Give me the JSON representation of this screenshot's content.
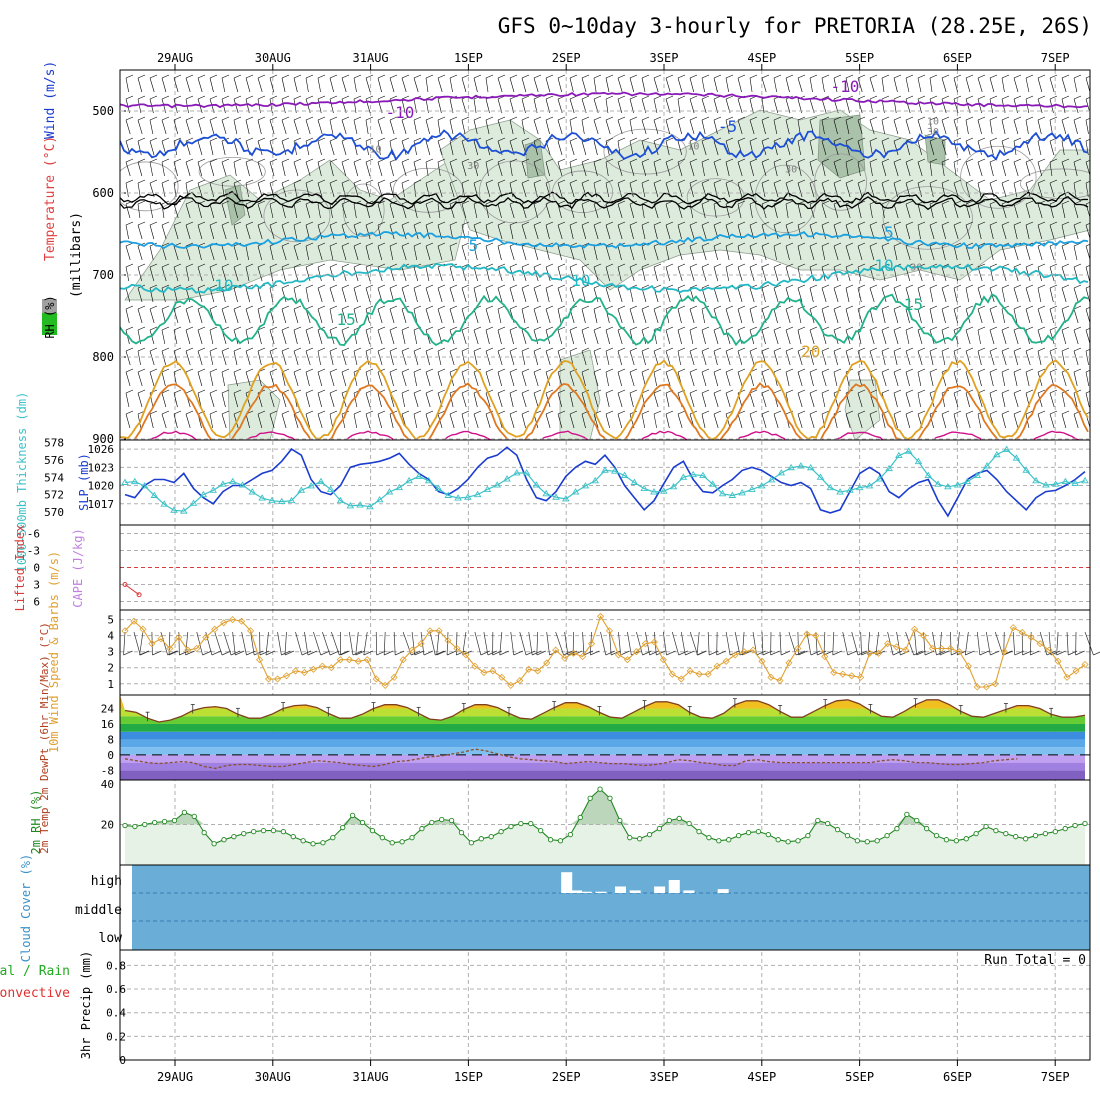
{
  "chart_title": "GFS 0~10day 3-hourly for PRETORIA (28.25E, 26S)",
  "chart_data": [
    {
      "type": "contour",
      "panel": "upper-air",
      "ylabel_parts": [
        "RH (%)",
        "Temperature (°C)",
        "Wind (m/s)",
        "(millibars)"
      ],
      "y_ticks": [
        "500",
        "600",
        "700",
        "800",
        "900"
      ],
      "ylim": [
        900,
        450
      ],
      "x_tick_labels": [
        "29AUG",
        "30AUG",
        "31AUG",
        "1SEP",
        "2SEP",
        "3SEP",
        "4SEP",
        "5SEP",
        "6SEP",
        "7SEP"
      ],
      "contour_labels": [
        {
          "text": "-10",
          "series": "temp-10",
          "day": 6.85
        },
        {
          "text": "-10",
          "series": "temp-10",
          "day": 2.3
        },
        {
          "text": "-5",
          "series": "temp-5",
          "day": 5.65
        },
        {
          "text": "5",
          "series": "temp5",
          "day": 3.05
        },
        {
          "text": "5",
          "series": "temp5",
          "day": 7.3
        },
        {
          "text": "10",
          "series": "temp10",
          "day": 0.5
        },
        {
          "text": "10",
          "series": "temp10",
          "day": 4.15
        },
        {
          "text": "10",
          "series": "temp10",
          "day": 7.25
        },
        {
          "text": "15",
          "series": "temp15",
          "day": 1.75
        },
        {
          "text": "15",
          "series": "temp15",
          "day": 7.55
        },
        {
          "text": "20",
          "series": "temp20",
          "day": 6.5
        }
      ],
      "rh_labels": [
        {
          "text": "10",
          "day": 5.3,
          "p": 548
        },
        {
          "text": "10",
          "day": 7.75,
          "p": 518
        },
        {
          "text": "30",
          "day": 7.75,
          "p": 531
        },
        {
          "text": "10",
          "day": 2.05,
          "p": 552
        },
        {
          "text": "30",
          "day": 3.05,
          "p": 572
        },
        {
          "text": "30",
          "day": 6.3,
          "p": 576
        },
        {
          "text": "30",
          "day": 7.58,
          "p": 695
        },
        {
          "text": "30",
          "day": 9.95,
          "p": 542
        }
      ]
    },
    {
      "type": "line",
      "panel": "thickness-slp",
      "ylabel_left": "1000-500mb Thickness (dm)",
      "ylabel_right": "SLP (mb)",
      "y_ticks_thickness": [
        "578",
        "576",
        "574",
        "572",
        "570"
      ],
      "y_ticks_slp": [
        "1026",
        "1023",
        "1020",
        "1017"
      ],
      "series": [
        {
          "key": "slp",
          "values": [
            1018.5,
            1018,
            1020,
            1021,
            1021,
            1020.5,
            1022,
            1019.5,
            1018,
            1017,
            1019,
            1020,
            1020,
            1021,
            1022,
            1022.5,
            1024,
            1026,
            1025,
            1021,
            1019,
            1018.5,
            1020,
            1023,
            1023.5,
            1023.7,
            1024,
            1024.5,
            1025.3,
            1023.5,
            1022,
            1021,
            1019,
            1018.5,
            1019.5,
            1021,
            1023,
            1024.5,
            1025,
            1026.3,
            1025,
            1021,
            1018,
            1017.5,
            1019,
            1021.5,
            1023,
            1024,
            1023.5,
            1025,
            1023,
            1020,
            1018,
            1016,
            1017.5,
            1020.3,
            1023,
            1024,
            1021,
            1019,
            1018.8,
            1020,
            1021,
            1022.5,
            1023,
            1022.5,
            1021.5,
            1020.5,
            1020,
            1020.5,
            1019.5,
            1016,
            1015.5,
            1016,
            1019,
            1022,
            1023,
            1022,
            1019,
            1018,
            1019.5,
            1020.5,
            1021,
            1017.5,
            1015,
            1018,
            1021,
            1022,
            1022.5,
            1021,
            1019,
            1017.5,
            1016,
            1018,
            1019,
            1019.2,
            1020,
            1021,
            1022.3
          ]
        },
        {
          "key": "thickness",
          "values": [
            573.4,
            573.5,
            573,
            571.9,
            570.9,
            570.2,
            570.1,
            571,
            572,
            572.5,
            573.2,
            573.5,
            573.1,
            572.3,
            571.6,
            571.3,
            571.2,
            571.3,
            572.5,
            573,
            573.5,
            572.6,
            571.3,
            570.7,
            570.8,
            570.6,
            571.4,
            572.3,
            572.8,
            573.6,
            574.1,
            573.6,
            572.7,
            571.9,
            571.6,
            571.7,
            572,
            572.6,
            573.1,
            573.8,
            574.5,
            574.5,
            573.1,
            572.1,
            571.7,
            571.5,
            572.3,
            573,
            573.6,
            574.8,
            574.7,
            574.2,
            573.4,
            572.7,
            572.3,
            572.4,
            572.9,
            574,
            574.3,
            574.2,
            573.2,
            572.1,
            571.9,
            572.2,
            572.6,
            573,
            573.7,
            574.5,
            575.1,
            575.3,
            575.1,
            574,
            572.8,
            572.3,
            572.5,
            572.8,
            573,
            573.8,
            575,
            576.5,
            577,
            575.8,
            574.2,
            573.2,
            572.9,
            573.1,
            573.5,
            574.2,
            575.3,
            576.6,
            577.2,
            576.2,
            574.8,
            573.6,
            573.1,
            573.2,
            573.5,
            573.3,
            573.6
          ]
        }
      ]
    },
    {
      "type": "line",
      "panel": "cape-li",
      "ylabel_left": "Lifted Index",
      "ylabel_right": "CAPE (J/kg)",
      "y_ticks": [
        "-6",
        "-3",
        "0",
        "3",
        "6"
      ],
      "series": [
        {
          "key": "lifted-index",
          "x_days": [
            0,
            0.18
          ],
          "values": [
            3,
            4.8
          ]
        }
      ]
    },
    {
      "type": "line",
      "panel": "wind10m",
      "ylabel": "10m Wind Speed & Barbs (m/s)",
      "y_ticks": [
        "1",
        "2",
        "3",
        "4",
        "5"
      ],
      "series": [
        {
          "key": "wind-speed",
          "values": [
            4.3,
            4.9,
            4.4,
            3.5,
            3.8,
            3.2,
            3.9,
            3.1,
            3.2,
            3.9,
            4.4,
            4.8,
            5,
            4.9,
            4.3,
            2.5,
            1.3,
            1.3,
            1.5,
            1.8,
            1.7,
            1.9,
            2.1,
            2,
            2.5,
            2.5,
            2.4,
            2.5,
            1.3,
            0.9,
            1.4,
            2.5,
            3.1,
            3.5,
            4.3,
            4.3,
            3.7,
            3.2,
            2.8,
            2.1,
            1.7,
            1.8,
            1.4,
            0.9,
            1.2,
            1.9,
            1.8,
            2.3,
            3.1,
            2.6,
            2.9,
            2.7,
            3.5,
            5.2,
            4.3,
            2.8,
            2.5,
            3,
            3.5,
            3.6,
            2.5,
            1.6,
            1.3,
            1.8,
            1.6,
            1.6,
            2.1,
            2.4,
            2.8,
            3,
            3.1,
            2.4,
            1.4,
            1.2,
            2.3,
            3.2,
            4.1,
            4,
            2.7,
            1.7,
            1.6,
            1.5,
            1.4,
            2.9,
            2.9,
            3.5,
            3.3,
            3.1,
            4.4,
            4,
            3.2,
            3.2,
            3.2,
            3,
            2.1,
            0.8,
            0.8,
            1,
            3,
            4.5,
            4.2,
            3.9,
            3.5,
            3.1,
            2.4,
            1.4,
            1.8,
            2.2
          ]
        }
      ]
    },
    {
      "type": "line",
      "panel": "temperature",
      "ylabel": "2m Temp 2m DewPt (6hr Min/Max) (°C)",
      "y_ticks": [
        "24",
        "16",
        "8",
        "0",
        "-8"
      ],
      "series": [
        {
          "key": "temp",
          "values": [
            23,
            22,
            19,
            17,
            18,
            20,
            23,
            24.5,
            25,
            24,
            21,
            19,
            19,
            21,
            24,
            25.5,
            25.8,
            24.5,
            21.5,
            19,
            19,
            21,
            24,
            26,
            26,
            24.5,
            21.5,
            18.5,
            18,
            20,
            23.5,
            26,
            26,
            24.5,
            21.5,
            19,
            18.5,
            21.5,
            24.5,
            27,
            27,
            25,
            22,
            19.5,
            19,
            22,
            25,
            27.5,
            27.5,
            26,
            22,
            19.5,
            19,
            21.5,
            26,
            28,
            28,
            26,
            22.5,
            19.5,
            19.5,
            22.5,
            25.5,
            28,
            28.5,
            26.5,
            23,
            20,
            19.5,
            22.5,
            26,
            28.5,
            28.5,
            26,
            22.5,
            20,
            19.5,
            21.5,
            23.5,
            25.5,
            25.5,
            24,
            21,
            19.5,
            19.5,
            20.5
          ]
        },
        {
          "key": "dewpoint",
          "values": [
            -2,
            -3,
            -4,
            -4.5,
            -4,
            -3.5,
            -4,
            -6,
            -7,
            -5.5,
            -5,
            -5,
            -5.5,
            -6,
            -6,
            -5,
            -4,
            -3,
            -3.5,
            -4,
            -5,
            -5.5,
            -6,
            -5,
            -3.5,
            -3,
            -2,
            -1,
            -0.5,
            0.5,
            1.5,
            3,
            2,
            0.5,
            -1,
            -2,
            -2.5,
            -3,
            -3.5,
            -4.5,
            -4,
            -3.5,
            -4,
            -4.5,
            -4.5,
            -5,
            -5.5,
            -5,
            -4,
            -2.5,
            -3,
            -4,
            -4.5,
            -5.5,
            -5.5,
            -3,
            -2.5,
            -3.5,
            -4,
            -4,
            -4,
            -4,
            -4,
            -4,
            -4,
            -4,
            -4,
            -3,
            -2.5,
            -3,
            -4,
            -4,
            -4.5,
            -5,
            -5,
            -4.5,
            -4,
            -3,
            -2.5,
            -2
          ]
        }
      ]
    },
    {
      "type": "area",
      "panel": "rh2m",
      "ylabel": "2m RH (%)",
      "y_ticks": [
        "20",
        "40"
      ],
      "series": [
        {
          "key": "rh",
          "values": [
            19.5,
            19,
            20,
            21,
            21.5,
            22,
            26,
            24,
            16,
            10.5,
            12.5,
            14,
            15.5,
            16.5,
            17,
            17,
            16.5,
            14,
            12,
            10.5,
            11,
            13.5,
            18.5,
            24.5,
            21,
            17,
            13.5,
            11,
            11.5,
            13.5,
            18,
            21,
            22.5,
            22,
            16,
            11,
            13,
            14,
            16.5,
            19,
            20.5,
            20.5,
            17,
            12.5,
            12,
            15,
            23.5,
            33,
            37.5,
            33,
            22,
            13.5,
            13,
            15,
            18,
            22,
            23,
            20.5,
            16.5,
            13.5,
            12,
            12.5,
            14.5,
            16,
            16.5,
            15,
            12.5,
            11.5,
            12,
            14.5,
            22,
            20.5,
            17.5,
            14.5,
            12,
            11.5,
            12,
            14.5,
            18,
            25,
            22,
            18,
            14.5,
            12.5,
            12,
            13,
            15.5,
            19,
            17,
            15.5,
            14,
            13,
            14.5,
            15.5,
            16.5,
            18,
            19.5,
            20.5
          ]
        }
      ]
    },
    {
      "type": "bar",
      "panel": "cloud",
      "ylabel": "Cloud Cover (%)",
      "y_ticks": [
        "high",
        "middle",
        "low"
      ],
      "high_cloud_bars": [
        {
          "day": 4.0,
          "value": 0.8
        },
        {
          "day": 4.1,
          "value": 0.1
        },
        {
          "day": 4.2,
          "value": 0.05
        },
        {
          "day": 4.35,
          "value": 0.05
        },
        {
          "day": 4.55,
          "value": 0.25
        },
        {
          "day": 4.7,
          "value": 0.1
        },
        {
          "day": 4.95,
          "value": 0.25
        },
        {
          "day": 5.1,
          "value": 0.5
        },
        {
          "day": 5.25,
          "value": 0.1
        },
        {
          "day": 5.6,
          "value": 0.15
        }
      ]
    },
    {
      "type": "bar",
      "panel": "precip",
      "ylabel_parts": [
        "Total / Rain",
        "Convective",
        "3hr Precip (mm)"
      ],
      "y_ticks": [
        "0",
        "0.2",
        "0.4",
        "0.6",
        "0.8"
      ],
      "run_total": "Run Total = 0",
      "values": [
        0
      ]
    }
  ],
  "colors": {
    "axis": "#000000",
    "grid": "#b0b0b0",
    "temp_-10": "#8a1ab8",
    "temp_-5": "#1c4fd6",
    "temp_0": "#000000",
    "temp_5": "#1ba0e0",
    "temp_10": "#22b8c4",
    "temp_15": "#22b28a",
    "temp_20": "#e0a020",
    "temp_25": "#e07820",
    "temp_30": "#d0108a",
    "rh_fill": "#dcebdc",
    "rh_dark": "#a9c2a9",
    "slp": "#1a3ccf",
    "thickness": "#3cc2c8",
    "li": "#d93a3a",
    "cape": "#c080e0",
    "wind": "#e0a030",
    "tmax_fill": "#f7a21c",
    "tmax_dark": "#ec7a1c",
    "dew": "#8a5030",
    "rh2m_line": "#228822",
    "cloud_bg": "#6aaed8",
    "precip_total": "#22aa22",
    "precip_conv": "#e03030"
  }
}
